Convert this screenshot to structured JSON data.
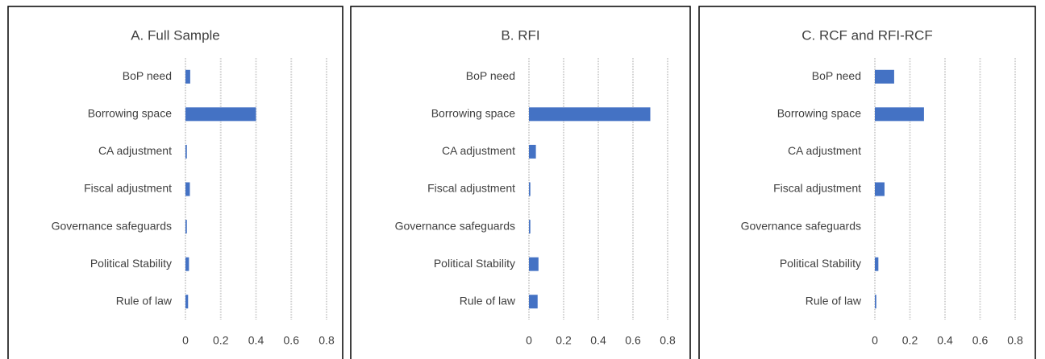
{
  "chart_data": [
    {
      "type": "bar",
      "orientation": "horizontal",
      "title": "A. Full Sample",
      "categories": [
        "BoP need",
        "Borrowing space",
        "CA adjustment",
        "Fiscal adjustment",
        "Governance safeguards",
        "Political Stability",
        "Rule of law"
      ],
      "values": [
        0.027,
        0.4,
        0.008,
        0.025,
        0.008,
        0.02,
        0.015
      ],
      "color": "#4472c4",
      "xlim": [
        0,
        0.8
      ],
      "xticks": [
        0,
        0.2,
        0.4,
        0.6,
        0.8
      ],
      "grid": true
    },
    {
      "type": "bar",
      "orientation": "horizontal",
      "title": "B. RFI",
      "categories": [
        "BoP need",
        "Borrowing space",
        "CA adjustment",
        "Fiscal adjustment",
        "Governance safeguards",
        "Political Stability",
        "Rule of law"
      ],
      "values": [
        0,
        0.7,
        0.04,
        0.008,
        0.008,
        0.055,
        0.05
      ],
      "color": "#4472c4",
      "xlim": [
        0,
        0.8
      ],
      "xticks": [
        0,
        0.2,
        0.4,
        0.6,
        0.8
      ],
      "grid": true
    },
    {
      "type": "bar",
      "orientation": "horizontal",
      "title": "C. RCF and RFI-RCF",
      "categories": [
        "BoP need",
        "Borrowing space",
        "CA adjustment",
        "Fiscal adjustment",
        "Governance safeguards",
        "Political Stability",
        "Rule of law"
      ],
      "values": [
        0.11,
        0.28,
        0,
        0.055,
        0,
        0.02,
        0.008
      ],
      "color": "#4472c4",
      "xlim": [
        0,
        0.8
      ],
      "xticks": [
        0,
        0.2,
        0.4,
        0.6,
        0.8
      ],
      "grid": true
    }
  ]
}
